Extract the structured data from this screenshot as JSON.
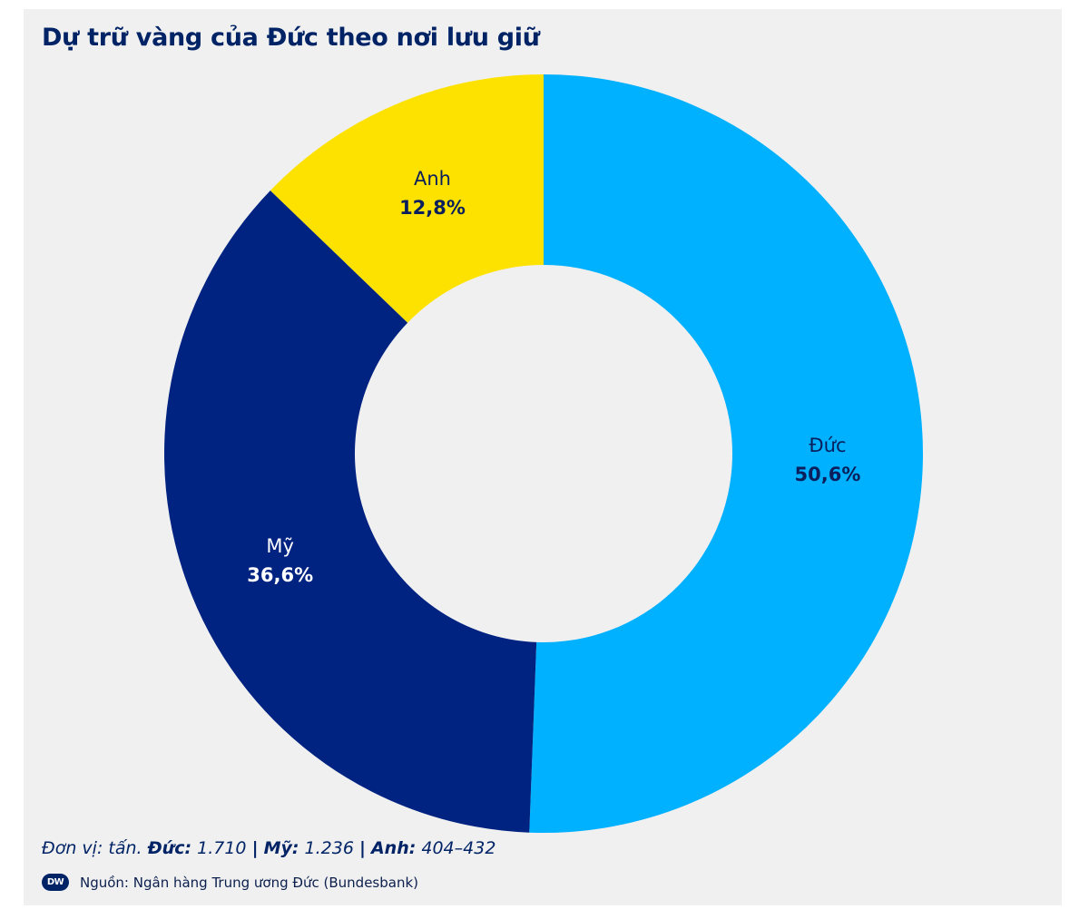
{
  "title": "Dự trữ vàng của Đức theo nơi lưu giữ",
  "chart_data": {
    "type": "pie",
    "title": "Dự trữ vàng của Đức theo nơi lưu giữ",
    "donut": true,
    "start_at": "top",
    "direction": "clockwise",
    "slices": [
      {
        "label": "Đức",
        "value": 50.6,
        "value_label": "50,6%",
        "color": "#00b1ff",
        "text_color": "#0a1f5c"
      },
      {
        "label": "Mỹ",
        "value": 36.6,
        "value_label": "36,6%",
        "color": "#002381",
        "text_color": "#ffffff"
      },
      {
        "label": "Anh",
        "value": 12.8,
        "value_label": "12,8%",
        "color": "#fde200",
        "text_color": "#0a1f5c"
      }
    ]
  },
  "footnote": {
    "prefix": "Đơn vị: tấn.",
    "items": [
      {
        "name": "Đức:",
        "value": "1.710"
      },
      {
        "name": "Mỹ:",
        "value": "1.236"
      },
      {
        "name": "Anh:",
        "value": "404–432"
      }
    ],
    "separator": "|"
  },
  "source": {
    "logo_text": "DW",
    "text": "Nguồn: Ngân hàng Trung ương Đức (Bundesbank)"
  }
}
